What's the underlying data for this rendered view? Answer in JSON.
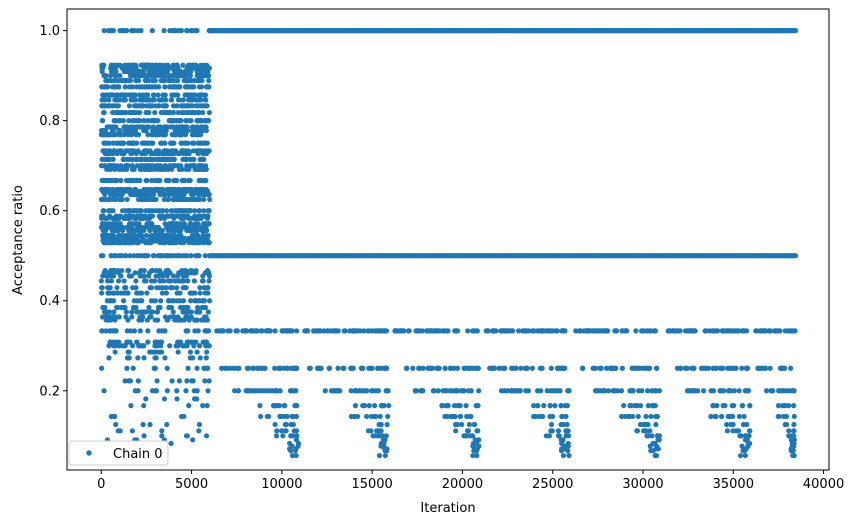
{
  "chart_data": {
    "type": "scatter",
    "title": "",
    "xlabel": "Iteration",
    "ylabel": "Acceptance ratio",
    "xlim": [
      -1900,
      40300
    ],
    "ylim": [
      0.024,
      1.048
    ],
    "xticks": [
      0,
      5000,
      10000,
      15000,
      20000,
      25000,
      30000,
      35000,
      40000
    ],
    "xtick_labels": [
      "0",
      "5000",
      "10000",
      "15000",
      "20000",
      "25000",
      "30000",
      "35000",
      "40000"
    ],
    "yticks": [
      0.2,
      0.4,
      0.6,
      0.8,
      1.0
    ],
    "ytick_labels": [
      "0.2",
      "0.4",
      "0.6",
      "0.8",
      "1.0"
    ],
    "grid": false,
    "legend": {
      "position": "lower-left",
      "entries": [
        "Chain 0"
      ]
    },
    "series": [
      {
        "name": "Chain 0",
        "color": "#1f77b4",
        "marker": "circle",
        "total_iterations": 38500,
        "phases": [
          {
            "x_range": [
              0,
              6000
            ],
            "levels": [
              1.0,
              0.923,
              0.917,
              0.909,
              0.9,
              0.889,
              0.875,
              0.857,
              0.846,
              0.833,
              0.818,
              0.8,
              0.786,
              0.778,
              0.769,
              0.75,
              0.733,
              0.727,
              0.714,
              0.7,
              0.692,
              0.667,
              0.647,
              0.643,
              0.636,
              0.625,
              0.6,
              0.588,
              0.583,
              0.571,
              0.563,
              0.556,
              0.545,
              0.538,
              0.533,
              0.529,
              0.5,
              0.467,
              0.462,
              0.455,
              0.444,
              0.429,
              0.417,
              0.4,
              0.385,
              0.375,
              0.364,
              0.357,
              0.333,
              0.308,
              0.3,
              0.286,
              0.273,
              0.25,
              0.222,
              0.2,
              0.182,
              0.167,
              0.143,
              0.125,
              0.111,
              0.1,
              0.091,
              0.083
            ],
            "density": "dense for levels 0.5 to 0.92 and 1.0, sparse below 0.3"
          },
          {
            "x_range": [
              6000,
              38500
            ],
            "levels": [
              1.0,
              0.5,
              0.333,
              0.25,
              0.2,
              0.167,
              0.143,
              0.125,
              0.111,
              0.1,
              0.091,
              0.083,
              0.077,
              0.071,
              0.067,
              0.056
            ],
            "continuous_levels": [
              1.0,
              0.5
            ],
            "cycle_length": 5000,
            "cycles": [
              {
                "start": 6000,
                "end": 11000
              },
              {
                "start": 11000,
                "end": 16000
              },
              {
                "start": 16000,
                "end": 21000
              },
              {
                "start": 21000,
                "end": 26000
              },
              {
                "start": 26000,
                "end": 31000
              },
              {
                "start": 31000,
                "end": 36000
              },
              {
                "start": 36000,
                "end": 38500
              }
            ],
            "pattern": "within each cycle, level 0.333 is present over most of the cycle and lower levels appear progressively later, reaching ~0.06 just before each cycle ends"
          }
        ]
      }
    ]
  }
}
